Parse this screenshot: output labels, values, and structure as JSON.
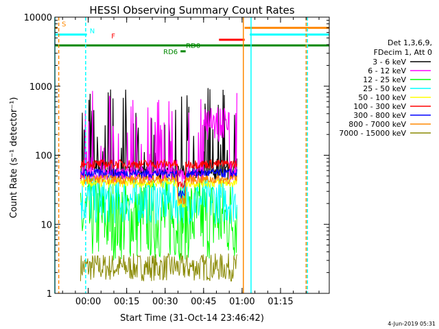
{
  "chart_data": {
    "type": "line",
    "title": "HESSI Observing Summary Count Rates",
    "xlabel": "Start Time (31-Oct-14 23:46:42)",
    "ylabel": "Count Rate (s⁻¹ detector⁻¹)",
    "yscale": "log",
    "ylim": [
      1,
      10000
    ],
    "xlim_minutes": [
      -13,
      94
    ],
    "x_ticks": [
      {
        "label": "00:00",
        "minutes": 0
      },
      {
        "label": "00:15",
        "minutes": 15
      },
      {
        "label": "00:30",
        "minutes": 30
      },
      {
        "label": "00:45",
        "minutes": 45
      },
      {
        "label": "01:00",
        "minutes": 60
      },
      {
        "label": "01:15",
        "minutes": 75
      }
    ],
    "y_ticks": [
      {
        "label": "1",
        "value": 1
      },
      {
        "label": "10",
        "value": 10
      },
      {
        "label": "100",
        "value": 100
      },
      {
        "label": "1000",
        "value": 1000
      },
      {
        "label": "10000",
        "value": 10000
      }
    ],
    "legend": {
      "placement": "right",
      "header_lines": [
        "Det 1,3,6,9,",
        "FDecim 1, Att 0"
      ],
      "entries": [
        {
          "label": "3 - 6 keV",
          "color": "#000000"
        },
        {
          "label": "6 - 12 keV",
          "color": "#ff00ff"
        },
        {
          "label": "12 - 25 keV",
          "color": "#00ff00"
        },
        {
          "label": "25 - 50 keV",
          "color": "#00ffff"
        },
        {
          "label": "50 - 100 keV",
          "color": "#ffff00"
        },
        {
          "label": "100 - 300 keV",
          "color": "#ff0000"
        },
        {
          "label": "300 - 800 keV",
          "color": "#0000ff"
        },
        {
          "label": "800 - 7000 keV",
          "color": "#ff8800"
        },
        {
          "label": "7000 - 15000 keV",
          "color": "#888800"
        }
      ]
    },
    "data_window_minutes": [
      -3,
      58
    ],
    "series_levels": [
      {
        "name": "3 - 6 keV",
        "color": "#000000",
        "base": 55,
        "spike_max": 1200
      },
      {
        "name": "6 - 12 keV",
        "color": "#ff00ff",
        "base": 50,
        "spike_max": 1000
      },
      {
        "name": "12 - 25 keV",
        "color": "#00ff00",
        "base": 14,
        "low": 3,
        "high": 50
      },
      {
        "name": "25 - 50 keV",
        "color": "#00ffff",
        "base": 30,
        "low": 10,
        "high": 50
      },
      {
        "name": "50 - 100 keV",
        "color": "#ffff00",
        "base": 40
      },
      {
        "name": "100 - 300 keV",
        "color": "#ff0000",
        "base": 75
      },
      {
        "name": "300 - 800 keV",
        "color": "#0000ff",
        "base": 55
      },
      {
        "name": "800 - 7000 keV",
        "color": "#ff8800",
        "base": 45
      },
      {
        "name": "7000 - 15000 keV",
        "color": "#888800",
        "base": 2.8,
        "low": 1.5,
        "high": 3.8
      }
    ],
    "flag_bars": [
      {
        "label": "S",
        "color": "#ff8800",
        "y": 7000,
        "x_start": -13,
        "x_end": -12
      },
      {
        "label": "",
        "color": "#ff8800",
        "y": 7000,
        "x_start": 61,
        "x_end": 94
      },
      {
        "label": "N",
        "color": "#00ffff",
        "y": 5600,
        "x_start": -13,
        "x_end": -0.5
      },
      {
        "label": "",
        "color": "#00ffff",
        "y": 5600,
        "x_start": 63,
        "x_end": 94
      },
      {
        "label": "F",
        "color": "#ff0000",
        "y": 4700,
        "x_start": 51,
        "x_end": 61
      },
      {
        "label": "RD0",
        "color": "#008800",
        "y": 3900,
        "x_start": -13,
        "x_end": 94
      },
      {
        "label": "RD6",
        "color": "#008800",
        "y": 3200,
        "x_start": 36,
        "x_end": 38
      }
    ],
    "vertical_markers": [
      {
        "color": "#00ffff",
        "style": "solid",
        "minutes": -13
      },
      {
        "color": "#ff8800",
        "style": "dashed",
        "minutes": -11.5
      },
      {
        "color": "#00ffff",
        "style": "dashed",
        "minutes": -1
      },
      {
        "color": "#ff8800",
        "style": "solid",
        "minutes": 60.5
      },
      {
        "color": "#00ffff",
        "style": "solid",
        "minutes": 63.5
      },
      {
        "color": "#ff8800",
        "style": "dashed",
        "minutes": 85
      },
      {
        "color": "#00ffff",
        "style": "dashed",
        "minutes": 85.5
      }
    ],
    "footer": "4-Jun-2019 05:31"
  }
}
